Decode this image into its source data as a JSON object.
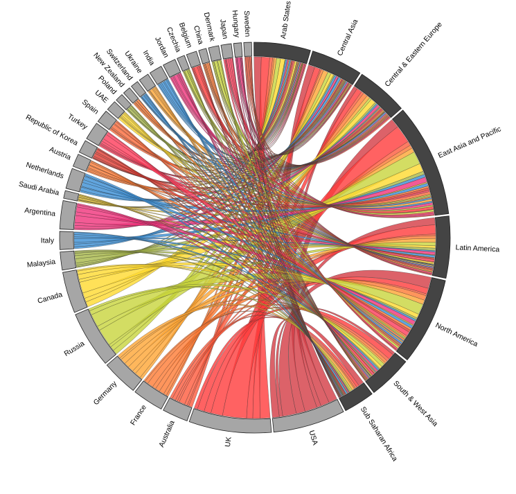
{
  "chart_data": {
    "type": "chord",
    "title": "",
    "destinations": [
      {
        "name": "Arab States",
        "color": "#444444",
        "value": 22
      },
      {
        "name": "Central Asia",
        "color": "#444444",
        "value": 20
      },
      {
        "name": "Central & Eastern Europe",
        "color": "#444444",
        "value": 20
      },
      {
        "name": "East Asia and Pacific",
        "color": "#444444",
        "value": 44
      },
      {
        "name": "Latin America",
        "color": "#444444",
        "value": 24
      },
      {
        "name": "North America",
        "color": "#444444",
        "value": 34
      },
      {
        "name": "South & West Asia",
        "color": "#444444",
        "value": 17
      },
      {
        "name": "Sub Saharan Africa",
        "color": "#444444",
        "value": 12
      }
    ],
    "origins": [
      {
        "name": "USA",
        "color": "#d33b44",
        "value": 28
      },
      {
        "name": "UK",
        "color": "#ff3b3b",
        "value": 32
      },
      {
        "name": "Australia",
        "color": "#ff5a3c",
        "value": 10
      },
      {
        "name": "France",
        "color": "#ff7a33",
        "value": 12
      },
      {
        "name": "Germany",
        "color": "#ffa533",
        "value": 14
      },
      {
        "name": "Russia",
        "color": "#c8d43c",
        "value": 22
      },
      {
        "name": "Canada",
        "color": "#ffd92e",
        "value": 16
      },
      {
        "name": "Malaysia",
        "color": "#a8b848",
        "value": 7
      },
      {
        "name": "Italy",
        "color": "#3a8fd6",
        "value": 7
      },
      {
        "name": "Argentina",
        "color": "#f0327a",
        "value": 11
      },
      {
        "name": "Saudi Arabia",
        "color": "#e8c430",
        "value": 3
      },
      {
        "name": "Netherlands",
        "color": "#3a8fd6",
        "value": 8
      },
      {
        "name": "Austria",
        "color": "#ff7a33",
        "value": 5
      },
      {
        "name": "Republic of Korea",
        "color": "#e03a30",
        "value": 5
      },
      {
        "name": "Turkey",
        "color": "#ff3b5a",
        "value": 7
      },
      {
        "name": "Spain",
        "color": "#ff6a3a",
        "value": 5
      },
      {
        "name": "UAE",
        "color": "#ffd92e",
        "value": 4
      },
      {
        "name": "Poland",
        "color": "#a8b848",
        "value": 3
      },
      {
        "name": "New Zealand",
        "color": "#ff7a33",
        "value": 3
      },
      {
        "name": "Switzerland",
        "color": "#3a8fd6",
        "value": 3
      },
      {
        "name": "Ukraine",
        "color": "#ffa533",
        "value": 4
      },
      {
        "name": "India",
        "color": "#3a8fd6",
        "value": 5
      },
      {
        "name": "Jordan",
        "color": "#f0327a",
        "value": 5
      },
      {
        "name": "Czechia",
        "color": "#c8d43c",
        "value": 3
      },
      {
        "name": "Belgium",
        "color": "#ff3b3b",
        "value": 4
      },
      {
        "name": "China",
        "color": "#ff7a33",
        "value": 3
      },
      {
        "name": "Denmark",
        "color": "#c8d43c",
        "value": 4
      },
      {
        "name": "Japan",
        "color": "#ff3b5a",
        "value": 4
      },
      {
        "name": "Hungary",
        "color": "#f0327a",
        "value": 3
      },
      {
        "name": "Sweden",
        "color": "#ff5a3c",
        "value": 3
      }
    ],
    "style": {
      "destination_arc_color": "#444444",
      "origin_arc_color": "#a6a6a6",
      "ribbon_opacity": 0.8,
      "ribbon_stroke": "#333333"
    },
    "legend": "none"
  }
}
